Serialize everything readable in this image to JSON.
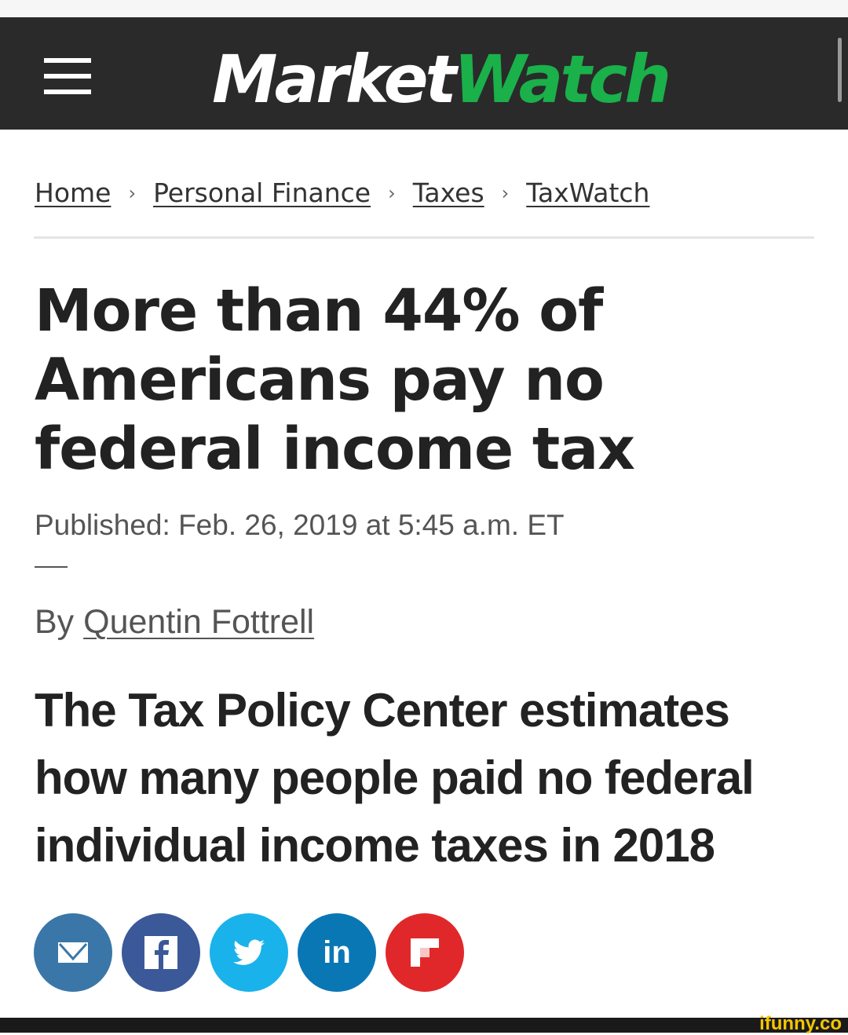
{
  "header": {
    "logo_market": "Market",
    "logo_watch": "Watch",
    "brand_green": "#1ab04a",
    "bg": "#2a2a2a"
  },
  "breadcrumb": [
    "Home",
    "Personal Finance",
    "Taxes",
    "TaxWatch"
  ],
  "article": {
    "headline": "More than 44% of Americans pay no federal income tax",
    "published": "Published: Feb. 26, 2019 at 5:45 a.m. ET",
    "by_label": "By",
    "author": "Quentin Fottrell",
    "subheadline": "The Tax Policy Center estimates how many people paid no federal individual income taxes in 2018"
  },
  "share": [
    {
      "icon": "email-icon",
      "color": "#3a77a8"
    },
    {
      "icon": "facebook-icon",
      "color": "#3b5998"
    },
    {
      "icon": "twitter-icon",
      "color": "#1ab2ea"
    },
    {
      "icon": "linkedin-icon",
      "color": "#0a77b5",
      "label": "in"
    },
    {
      "icon": "flipboard-icon",
      "color": "#e0282a"
    }
  ],
  "watermark": "ifunny.co"
}
